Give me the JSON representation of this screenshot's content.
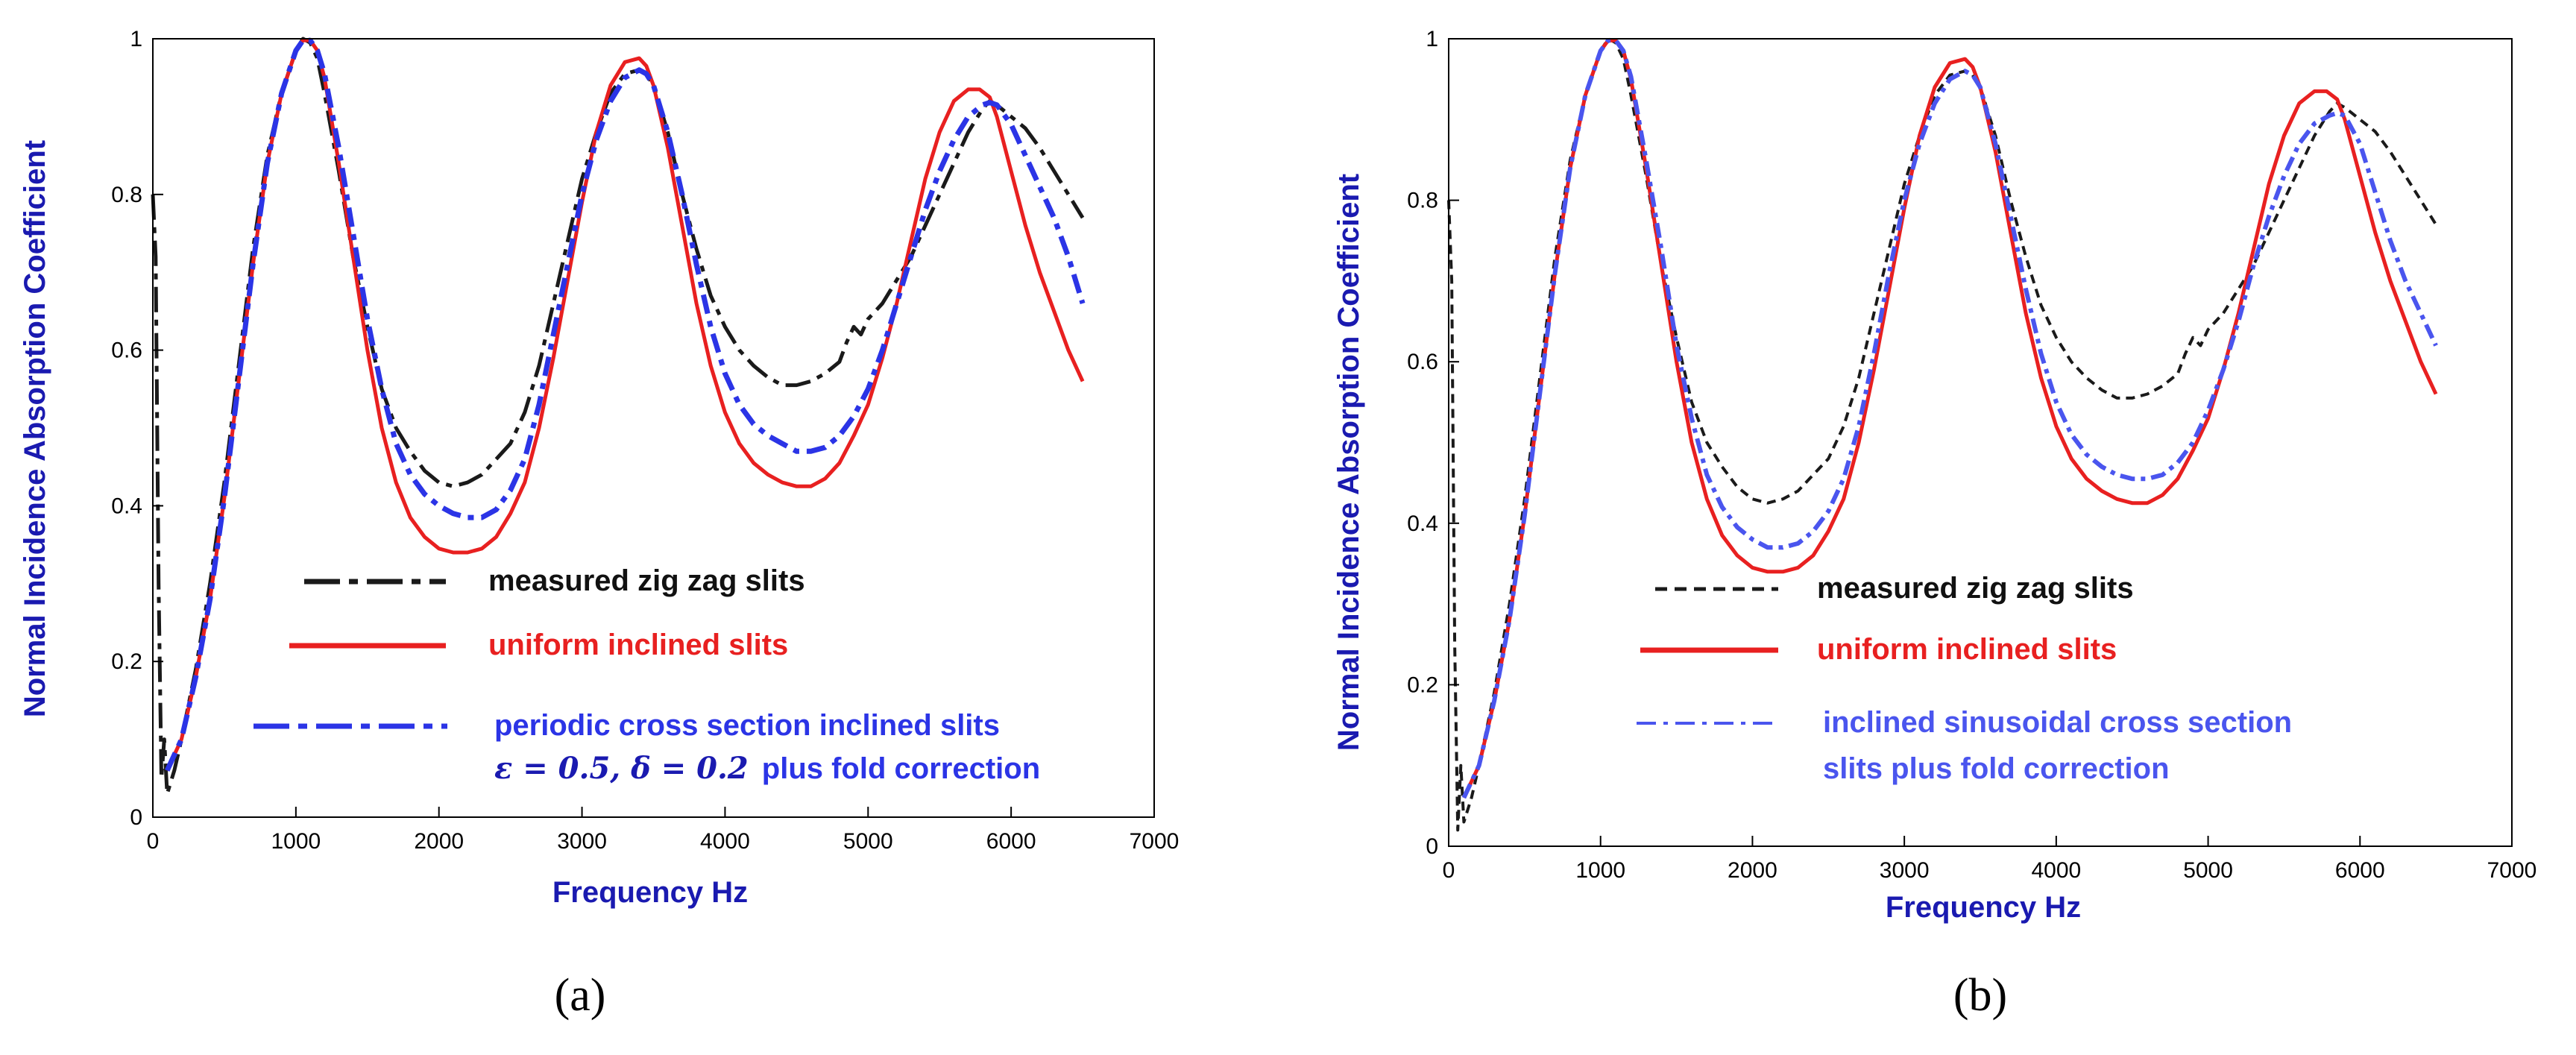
{
  "colors": {
    "measured_a": "#1a1a1a",
    "measured_b": "#1a1a1a",
    "uniform": "#e82020",
    "periodic": "#2b34e6",
    "sinusoidal": "#4a55ee",
    "axis_title": "#1a1ab0"
  },
  "chart_data": [
    {
      "panel": "(a)",
      "type": "line",
      "xlabel": "Frequency Hz",
      "ylabel": "Normal Incidence Absorption Coefficient",
      "xlim": [
        0,
        7000
      ],
      "ylim": [
        0,
        1
      ],
      "x_ticks": [
        "0",
        "1000",
        "2000",
        "3000",
        "4000",
        "5000",
        "6000",
        "7000"
      ],
      "y_ticks": [
        "0",
        "0.2",
        "0.4",
        "0.6",
        "0.8",
        "1"
      ],
      "grid": false,
      "legend": [
        {
          "text": "measured zig zag slits"
        },
        {
          "text": "uniform inclined slits"
        },
        {
          "text": "periodic cross section inclined slits"
        },
        {
          "text": "plus fold correction",
          "math": "ε = 0.5, δ = 0.2"
        }
      ],
      "series": [
        {
          "name": "measured zig zag slits",
          "style": "dashdot",
          "x": [
            0,
            20,
            40,
            60,
            80,
            100,
            150,
            200,
            300,
            400,
            500,
            600,
            700,
            800,
            900,
            1000,
            1050,
            1100,
            1150,
            1200,
            1300,
            1400,
            1500,
            1600,
            1700,
            1800,
            1900,
            2000,
            2100,
            2200,
            2300,
            2400,
            2500,
            2600,
            2700,
            2800,
            2900,
            3000,
            3100,
            3200,
            3300,
            3400,
            3450,
            3500,
            3600,
            3700,
            3800,
            3900,
            4000,
            4100,
            4200,
            4300,
            4400,
            4500,
            4600,
            4700,
            4800,
            4850,
            4900,
            4950,
            5000,
            5100,
            5200,
            5300,
            5400,
            5500,
            5600,
            5700,
            5800,
            5850,
            5900,
            6000,
            6100,
            6200,
            6300,
            6400,
            6500
          ],
          "y": [
            0.8,
            0.72,
            0.3,
            0.05,
            0.1,
            0.03,
            0.06,
            0.1,
            0.19,
            0.3,
            0.43,
            0.58,
            0.73,
            0.85,
            0.93,
            0.985,
            1.0,
            0.995,
            0.975,
            0.93,
            0.83,
            0.72,
            0.63,
            0.55,
            0.5,
            0.47,
            0.445,
            0.43,
            0.425,
            0.43,
            0.44,
            0.46,
            0.48,
            0.52,
            0.58,
            0.66,
            0.74,
            0.82,
            0.88,
            0.93,
            0.955,
            0.96,
            0.955,
            0.94,
            0.88,
            0.8,
            0.73,
            0.67,
            0.63,
            0.6,
            0.58,
            0.565,
            0.555,
            0.555,
            0.56,
            0.57,
            0.585,
            0.61,
            0.63,
            0.62,
            0.64,
            0.66,
            0.69,
            0.72,
            0.76,
            0.8,
            0.84,
            0.88,
            0.91,
            0.92,
            0.915,
            0.9,
            0.885,
            0.86,
            0.83,
            0.8,
            0.77
          ]
        },
        {
          "name": "uniform inclined slits",
          "style": "solid",
          "x": [
            100,
            200,
            300,
            400,
            500,
            600,
            700,
            800,
            900,
            1000,
            1050,
            1100,
            1150,
            1200,
            1300,
            1400,
            1500,
            1600,
            1700,
            1800,
            1900,
            2000,
            2100,
            2200,
            2300,
            2400,
            2500,
            2600,
            2700,
            2800,
            2900,
            3000,
            3100,
            3200,
            3300,
            3400,
            3450,
            3500,
            3600,
            3700,
            3800,
            3900,
            4000,
            4100,
            4200,
            4300,
            4400,
            4500,
            4600,
            4700,
            4800,
            4900,
            5000,
            5100,
            5200,
            5300,
            5400,
            5500,
            5600,
            5700,
            5780,
            5850,
            5900,
            6000,
            6100,
            6200,
            6300,
            6400,
            6500
          ],
          "y": [
            0.06,
            0.1,
            0.18,
            0.28,
            0.41,
            0.56,
            0.71,
            0.84,
            0.93,
            0.985,
            0.998,
            0.998,
            0.985,
            0.95,
            0.84,
            0.72,
            0.6,
            0.5,
            0.43,
            0.385,
            0.36,
            0.345,
            0.34,
            0.34,
            0.345,
            0.36,
            0.39,
            0.43,
            0.5,
            0.59,
            0.69,
            0.79,
            0.88,
            0.94,
            0.97,
            0.975,
            0.965,
            0.94,
            0.86,
            0.76,
            0.66,
            0.58,
            0.52,
            0.48,
            0.455,
            0.44,
            0.43,
            0.425,
            0.425,
            0.435,
            0.455,
            0.49,
            0.53,
            0.59,
            0.66,
            0.74,
            0.82,
            0.88,
            0.92,
            0.935,
            0.935,
            0.925,
            0.9,
            0.83,
            0.76,
            0.7,
            0.65,
            0.6,
            0.56
          ]
        },
        {
          "name": "periodic cross section inclined slits ε = 0.5, δ = 0.2 plus fold correction",
          "style": "dashdot",
          "x": [
            100,
            200,
            300,
            400,
            500,
            600,
            700,
            800,
            900,
            1000,
            1050,
            1100,
            1150,
            1200,
            1300,
            1400,
            1500,
            1600,
            1700,
            1800,
            1900,
            2000,
            2100,
            2200,
            2300,
            2400,
            2500,
            2600,
            2700,
            2800,
            2900,
            3000,
            3100,
            3200,
            3300,
            3400,
            3450,
            3500,
            3600,
            3700,
            3800,
            3900,
            4000,
            4100,
            4200,
            4300,
            4400,
            4500,
            4600,
            4700,
            4800,
            4900,
            5000,
            5100,
            5200,
            5300,
            5400,
            5500,
            5600,
            5700,
            5800,
            5850,
            5900,
            6000,
            6100,
            6200,
            6300,
            6400,
            6500
          ],
          "y": [
            0.06,
            0.1,
            0.18,
            0.28,
            0.41,
            0.56,
            0.71,
            0.84,
            0.93,
            0.985,
            0.998,
            0.998,
            0.985,
            0.955,
            0.86,
            0.75,
            0.64,
            0.55,
            0.48,
            0.44,
            0.415,
            0.4,
            0.39,
            0.385,
            0.385,
            0.395,
            0.42,
            0.46,
            0.53,
            0.62,
            0.71,
            0.8,
            0.87,
            0.92,
            0.95,
            0.96,
            0.955,
            0.94,
            0.88,
            0.8,
            0.71,
            0.63,
            0.57,
            0.53,
            0.505,
            0.49,
            0.48,
            0.47,
            0.47,
            0.475,
            0.49,
            0.515,
            0.55,
            0.6,
            0.66,
            0.72,
            0.78,
            0.83,
            0.87,
            0.9,
            0.915,
            0.918,
            0.915,
            0.89,
            0.85,
            0.81,
            0.77,
            0.72,
            0.66
          ]
        }
      ]
    },
    {
      "panel": "(b)",
      "type": "line",
      "xlabel": "Frequency Hz",
      "ylabel": "Normal Incidence Absorption Coefficient",
      "xlim": [
        0,
        7000
      ],
      "ylim": [
        0,
        1
      ],
      "x_ticks": [
        "0",
        "1000",
        "2000",
        "3000",
        "4000",
        "5000",
        "6000",
        "7000"
      ],
      "y_ticks": [
        "0",
        "0.2",
        "0.4",
        "0.6",
        "0.8",
        "1"
      ],
      "grid": false,
      "legend": [
        {
          "text": "measured zig zag slits"
        },
        {
          "text": "uniform inclined slits"
        },
        {
          "text": "inclined sinusoidal cross section"
        },
        {
          "text": "slits plus fold correction"
        }
      ],
      "series": [
        {
          "name": "measured zig zag slits",
          "style": "dashed",
          "x": [
            0,
            20,
            40,
            60,
            80,
            100,
            150,
            200,
            300,
            400,
            500,
            600,
            700,
            800,
            900,
            1000,
            1050,
            1100,
            1150,
            1200,
            1300,
            1400,
            1500,
            1600,
            1700,
            1800,
            1900,
            2000,
            2100,
            2200,
            2300,
            2400,
            2500,
            2600,
            2700,
            2800,
            2900,
            3000,
            3100,
            3200,
            3300,
            3400,
            3450,
            3500,
            3600,
            3700,
            3800,
            3900,
            4000,
            4100,
            4200,
            4300,
            4400,
            4500,
            4600,
            4700,
            4800,
            4850,
            4900,
            4950,
            5000,
            5100,
            5200,
            5300,
            5400,
            5500,
            5600,
            5700,
            5800,
            5850,
            5900,
            6000,
            6100,
            6200,
            6300,
            6400,
            6500
          ],
          "y": [
            0.8,
            0.7,
            0.25,
            0.02,
            0.1,
            0.03,
            0.06,
            0.1,
            0.19,
            0.3,
            0.43,
            0.58,
            0.73,
            0.85,
            0.93,
            0.985,
            1.0,
            0.995,
            0.975,
            0.93,
            0.83,
            0.72,
            0.63,
            0.55,
            0.5,
            0.47,
            0.445,
            0.43,
            0.425,
            0.43,
            0.44,
            0.46,
            0.48,
            0.52,
            0.58,
            0.66,
            0.74,
            0.82,
            0.88,
            0.93,
            0.955,
            0.96,
            0.955,
            0.94,
            0.88,
            0.8,
            0.73,
            0.67,
            0.63,
            0.6,
            0.58,
            0.565,
            0.555,
            0.555,
            0.56,
            0.57,
            0.585,
            0.61,
            0.63,
            0.62,
            0.64,
            0.66,
            0.69,
            0.72,
            0.76,
            0.8,
            0.84,
            0.88,
            0.91,
            0.92,
            0.915,
            0.9,
            0.885,
            0.86,
            0.83,
            0.8,
            0.77
          ]
        },
        {
          "name": "uniform inclined slits",
          "style": "solid",
          "x": [
            100,
            200,
            300,
            400,
            500,
            600,
            700,
            800,
            900,
            1000,
            1050,
            1100,
            1150,
            1200,
            1300,
            1400,
            1500,
            1600,
            1700,
            1800,
            1900,
            2000,
            2100,
            2200,
            2300,
            2400,
            2500,
            2600,
            2700,
            2800,
            2900,
            3000,
            3100,
            3200,
            3300,
            3400,
            3450,
            3500,
            3600,
            3700,
            3800,
            3900,
            4000,
            4100,
            4200,
            4300,
            4400,
            4500,
            4600,
            4700,
            4800,
            4900,
            5000,
            5100,
            5200,
            5300,
            5400,
            5500,
            5600,
            5700,
            5780,
            5850,
            5900,
            6000,
            6100,
            6200,
            6300,
            6400,
            6500
          ],
          "y": [
            0.06,
            0.1,
            0.18,
            0.28,
            0.41,
            0.56,
            0.71,
            0.84,
            0.93,
            0.985,
            0.998,
            0.998,
            0.985,
            0.95,
            0.84,
            0.72,
            0.6,
            0.5,
            0.43,
            0.385,
            0.36,
            0.345,
            0.34,
            0.34,
            0.345,
            0.36,
            0.39,
            0.43,
            0.5,
            0.59,
            0.69,
            0.79,
            0.88,
            0.94,
            0.97,
            0.975,
            0.965,
            0.94,
            0.86,
            0.76,
            0.66,
            0.58,
            0.52,
            0.48,
            0.455,
            0.44,
            0.43,
            0.425,
            0.425,
            0.435,
            0.455,
            0.49,
            0.53,
            0.59,
            0.66,
            0.74,
            0.82,
            0.88,
            0.92,
            0.935,
            0.935,
            0.925,
            0.9,
            0.83,
            0.76,
            0.7,
            0.65,
            0.6,
            0.56
          ]
        },
        {
          "name": "inclined sinusoidal cross section slits plus fold correction",
          "style": "dashdot",
          "x": [
            100,
            200,
            300,
            400,
            500,
            600,
            700,
            800,
            900,
            1000,
            1050,
            1100,
            1150,
            1200,
            1300,
            1400,
            1500,
            1600,
            1700,
            1800,
            1900,
            2000,
            2100,
            2200,
            2300,
            2400,
            2500,
            2600,
            2700,
            2800,
            2900,
            3000,
            3100,
            3200,
            3300,
            3400,
            3450,
            3500,
            3600,
            3700,
            3800,
            3900,
            4000,
            4100,
            4200,
            4300,
            4400,
            4500,
            4600,
            4700,
            4800,
            4900,
            5000,
            5100,
            5200,
            5300,
            5400,
            5500,
            5600,
            5700,
            5800,
            5850,
            5900,
            6000,
            6100,
            6200,
            6300,
            6400,
            6500
          ],
          "y": [
            0.06,
            0.1,
            0.18,
            0.28,
            0.41,
            0.56,
            0.71,
            0.84,
            0.93,
            0.985,
            0.998,
            0.998,
            0.985,
            0.953,
            0.85,
            0.74,
            0.62,
            0.53,
            0.46,
            0.42,
            0.395,
            0.38,
            0.37,
            0.37,
            0.375,
            0.39,
            0.415,
            0.455,
            0.52,
            0.61,
            0.71,
            0.8,
            0.87,
            0.92,
            0.95,
            0.96,
            0.955,
            0.94,
            0.87,
            0.78,
            0.69,
            0.61,
            0.55,
            0.51,
            0.485,
            0.47,
            0.46,
            0.455,
            0.455,
            0.46,
            0.475,
            0.5,
            0.54,
            0.59,
            0.65,
            0.72,
            0.78,
            0.83,
            0.87,
            0.895,
            0.905,
            0.908,
            0.905,
            0.87,
            0.81,
            0.75,
            0.7,
            0.66,
            0.62
          ]
        }
      ]
    }
  ]
}
